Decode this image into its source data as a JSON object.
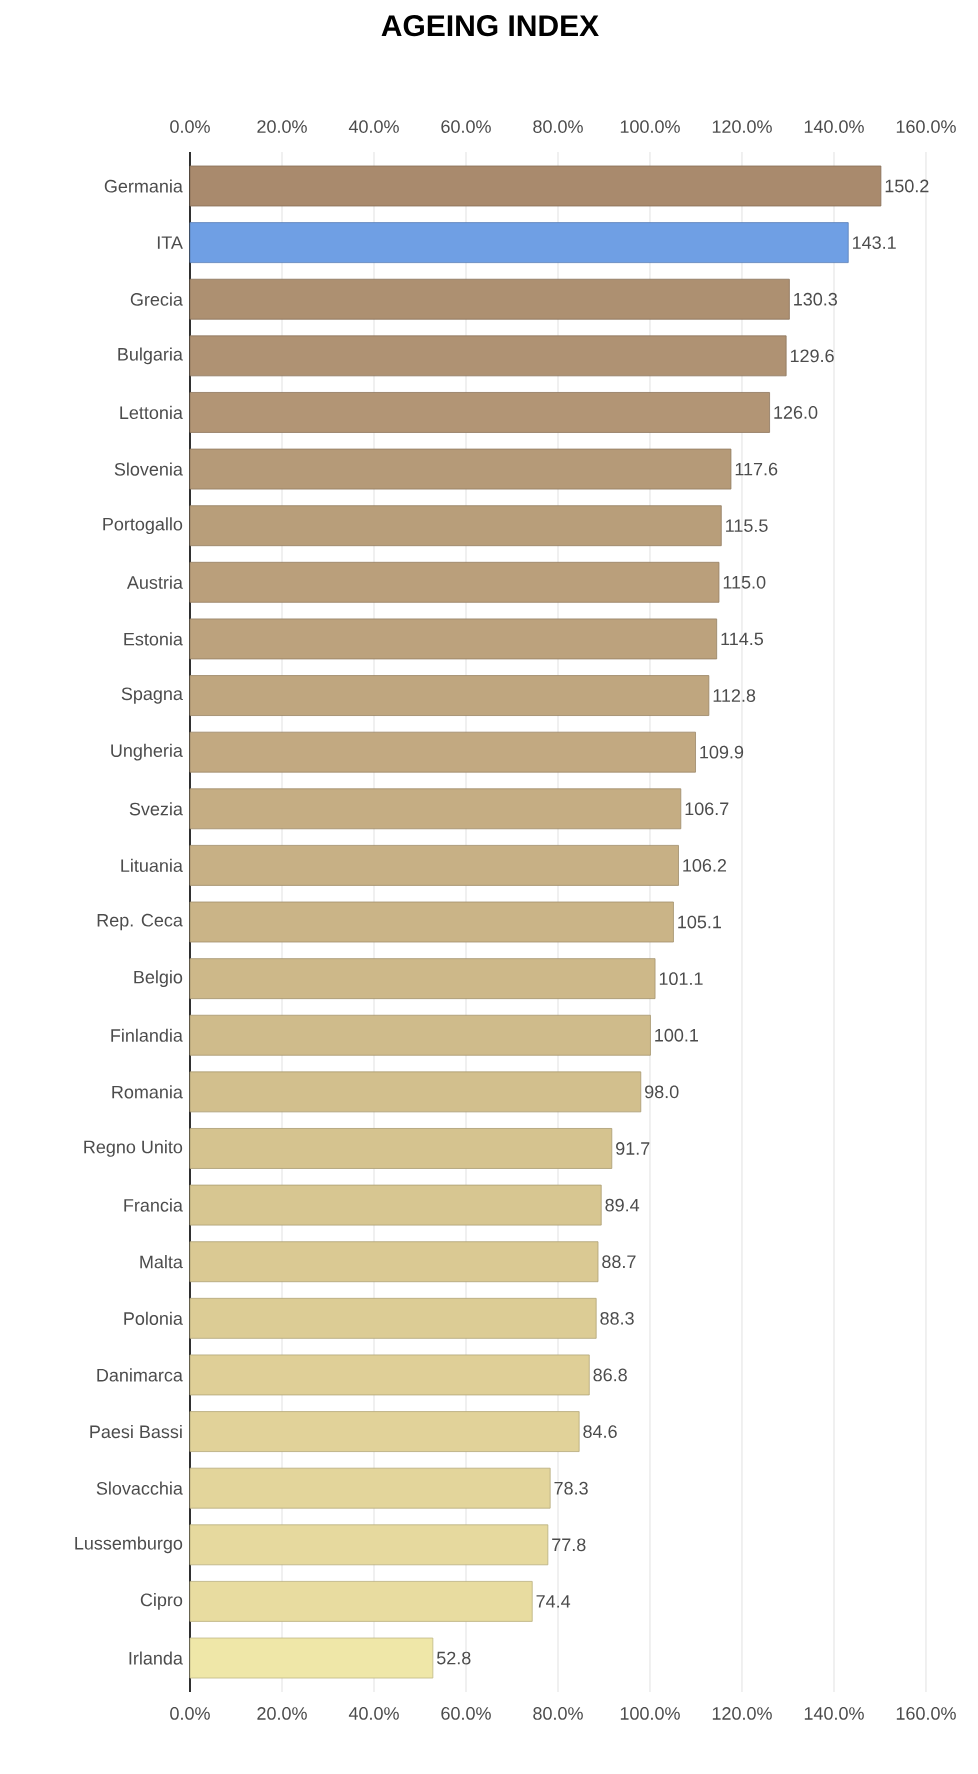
{
  "chart_data": {
    "type": "bar",
    "orientation": "horizontal",
    "title": "AGEING INDEX",
    "categories": [
      "Germania",
      "ITA",
      "Grecia",
      "Bulgaria",
      "Lettonia",
      "Slovenia",
      "Portogallo",
      "Austria",
      "Estonia",
      "Spagna",
      "Ungheria",
      "Svezia",
      "Lituania",
      "Rep. Ceca",
      "Belgio",
      "Finlandia",
      "Romania",
      "Regno Unito",
      "Francia",
      "Malta",
      "Polonia",
      "Danimarca",
      "Paesi Bassi",
      "Slovacchia",
      "Lussemburgo",
      "Cipro",
      "Irlanda"
    ],
    "values": [
      150.2,
      143.1,
      130.3,
      129.6,
      126.0,
      117.6,
      115.5,
      115.0,
      114.5,
      112.8,
      109.9,
      106.7,
      106.2,
      105.1,
      101.1,
      100.1,
      98.0,
      91.7,
      89.4,
      88.7,
      88.3,
      86.8,
      84.6,
      78.3,
      77.8,
      74.4,
      52.8
    ],
    "value_labels": [
      "150.2",
      "143.1",
      "130.3",
      "129.6",
      "126.0",
      "117.6",
      "115.5",
      "115.0",
      "114.5",
      "112.8",
      "109.9",
      "106.7",
      "106.2",
      "105.1",
      "101.1",
      "100.1",
      "98.0",
      "91.7",
      "89.4",
      "88.7",
      "88.3",
      "86.8",
      "84.6",
      "78.3",
      "77.8",
      "74.4",
      "52.8"
    ],
    "colors": [
      "#a98a6d",
      "#6f9fe4",
      "#ad9071",
      "#af9273",
      "#b29575",
      "#b59a78",
      "#b89e7a",
      "#ba9f7b",
      "#bca27d",
      "#bfa67f",
      "#c2a981",
      "#c5ad83",
      "#c7b085",
      "#cab487",
      "#cdb889",
      "#cfbb8b",
      "#d2bf8d",
      "#d5c38f",
      "#d7c691",
      "#dac993",
      "#dccc95",
      "#dfcf97",
      "#e1d299",
      "#e3d59b",
      "#e6d99e",
      "#e8dca0",
      "#efe7a8"
    ],
    "xlim": [
      0,
      160
    ],
    "xticks": [
      {
        "value": 0,
        "label": "0.0%"
      },
      {
        "value": 20,
        "label": "20.0%"
      },
      {
        "value": 40,
        "label": "40.0%"
      },
      {
        "value": 60,
        "label": "60.0%"
      },
      {
        "value": 80,
        "label": "80.0%"
      },
      {
        "value": 100,
        "label": "100.0%"
      },
      {
        "value": 120,
        "label": "120.0%"
      },
      {
        "value": 140,
        "label": "140.0%"
      },
      {
        "value": 160,
        "label": "160.0%"
      }
    ],
    "x2lim": [
      0,
      160
    ],
    "x2ticks": [
      {
        "value": 0,
        "label": "0.0%"
      },
      {
        "value": 20,
        "label": "20.0%"
      },
      {
        "value": 40,
        "label": "40.0%"
      },
      {
        "value": 60,
        "label": "60.0%"
      },
      {
        "value": 80,
        "label": "80.0%"
      },
      {
        "value": 100,
        "label": "100.0%"
      },
      {
        "value": 120,
        "label": "120.0%"
      },
      {
        "value": 140,
        "label": "140.0%"
      },
      {
        "value": 160,
        "label": "160.0%"
      }
    ],
    "grid": "x"
  }
}
